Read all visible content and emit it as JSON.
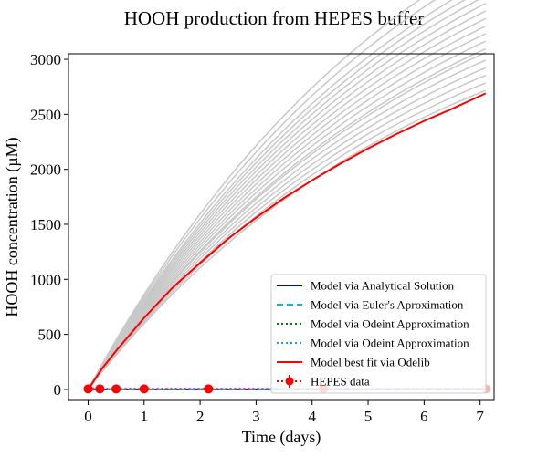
{
  "chart_data": {
    "type": "line",
    "title": "HOOH production from HEPES buffer",
    "xlabel": "Time (days)",
    "ylabel": "HOOH concentration (µM)",
    "xlim": [
      -0.35,
      7.25
    ],
    "ylim": [
      -100,
      3050
    ],
    "xticks": [
      0,
      1,
      2,
      3,
      4,
      5,
      6,
      7
    ],
    "yticks": [
      0,
      500,
      1000,
      1500,
      2000,
      2500,
      3000
    ],
    "grid": false,
    "legend_position": "lower-right",
    "ensemble": {
      "color": "#c8c8c8",
      "asymptotes": [
        3950,
        4050,
        4150,
        4250,
        4350,
        4450,
        4500,
        4600,
        4700,
        4800,
        4900,
        5000,
        5100,
        5200,
        5300,
        5400,
        5550,
        5700
      ],
      "rate": 0.164
    },
    "series": [
      {
        "name": "Model via Analytical Solution",
        "color": "#0000cc",
        "style": "solid",
        "x": [
          0,
          7.1
        ],
        "y": [
          0,
          0
        ]
      },
      {
        "name": "Model via Euler's Aproximation",
        "color": "#00bbcc",
        "style": "dashed",
        "x": [
          0,
          7.1
        ],
        "y": [
          0,
          0
        ]
      },
      {
        "name": "Model via Odeint Approximation",
        "color": "#008000",
        "style": "dotted",
        "x": [
          0,
          7.1
        ],
        "y": [
          0,
          0
        ]
      },
      {
        "name": "Model via Odeint Approximation",
        "color": "#1f9fd4",
        "style": "dotted",
        "x": [
          0,
          7.1
        ],
        "y": [
          0,
          0
        ]
      },
      {
        "name": "Model best fit via Odelib",
        "color": "#ff0000",
        "style": "solid",
        "x": [
          0,
          0.25,
          0.5,
          1,
          1.5,
          2,
          2.5,
          3,
          3.5,
          4,
          4.5,
          5,
          5.5,
          6,
          6.5,
          7.1
        ],
        "y": [
          0,
          190,
          350,
          650,
          920,
          1150,
          1370,
          1560,
          1740,
          1900,
          2050,
          2190,
          2320,
          2440,
          2550,
          2690
        ]
      },
      {
        "name": "HEPES data",
        "color": "#ff0000",
        "style": "dotted-errorbar",
        "x": [
          0,
          0.21,
          0.5,
          1.0,
          2.15,
          4.2,
          7.1
        ],
        "y": [
          5,
          5,
          5,
          5,
          5,
          5,
          5
        ]
      }
    ]
  }
}
